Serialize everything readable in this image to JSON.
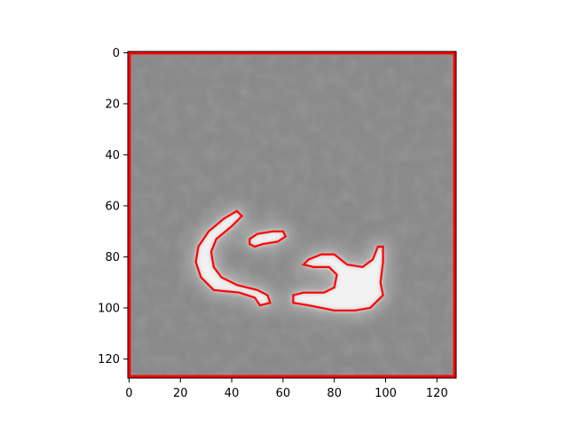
{
  "image": {
    "kind": "grayscale microscopy-style image with red contour overlay",
    "rows": 128,
    "cols": 128,
    "background_gray": "#8a8a8a",
    "contour_color": "#ff0000",
    "object_color": "#f2f2f2"
  },
  "axes": {
    "x_ticks": [
      {
        "value": 0,
        "label": "0"
      },
      {
        "value": 20,
        "label": "20"
      },
      {
        "value": 40,
        "label": "40"
      },
      {
        "value": 60,
        "label": "60"
      },
      {
        "value": 80,
        "label": "80"
      },
      {
        "value": 100,
        "label": "100"
      },
      {
        "value": 120,
        "label": "120"
      }
    ],
    "y_ticks": [
      {
        "value": 0,
        "label": "0"
      },
      {
        "value": 20,
        "label": "20"
      },
      {
        "value": 40,
        "label": "40"
      },
      {
        "value": 60,
        "label": "60"
      },
      {
        "value": 80,
        "label": "80"
      },
      {
        "value": 100,
        "label": "100"
      },
      {
        "value": 120,
        "label": "120"
      }
    ]
  },
  "contours": [
    {
      "name": "frame",
      "points": [
        [
          0,
          0
        ],
        [
          127,
          0
        ],
        [
          127,
          127
        ],
        [
          0,
          127
        ]
      ]
    },
    {
      "name": "left-arc",
      "points": [
        [
          42,
          62
        ],
        [
          44,
          64
        ],
        [
          40,
          68
        ],
        [
          34,
          73
        ],
        [
          32,
          78
        ],
        [
          33,
          84
        ],
        [
          36,
          88
        ],
        [
          42,
          91
        ],
        [
          50,
          93
        ],
        [
          54,
          95
        ],
        [
          55,
          98
        ],
        [
          51,
          99
        ],
        [
          49,
          96
        ],
        [
          43,
          94
        ],
        [
          33,
          93
        ],
        [
          28,
          88
        ],
        [
          26,
          82
        ],
        [
          27,
          76
        ],
        [
          31,
          70
        ],
        [
          37,
          65
        ]
      ]
    },
    {
      "name": "small-blob",
      "points": [
        [
          47,
          73
        ],
        [
          50,
          71
        ],
        [
          56,
          70
        ],
        [
          60,
          70
        ],
        [
          61,
          72
        ],
        [
          58,
          74
        ],
        [
          52,
          75
        ],
        [
          49,
          76
        ],
        [
          47,
          75
        ]
      ]
    },
    {
      "name": "right-hook",
      "points": [
        [
          64,
          95
        ],
        [
          68,
          94
        ],
        [
          76,
          94
        ],
        [
          80,
          92
        ],
        [
          81,
          87
        ],
        [
          78,
          84
        ],
        [
          72,
          84
        ],
        [
          68,
          83
        ],
        [
          70,
          81
        ],
        [
          75,
          79
        ],
        [
          80,
          79
        ],
        [
          85,
          83
        ],
        [
          91,
          84
        ],
        [
          95,
          81
        ],
        [
          97,
          76
        ],
        [
          99,
          76
        ],
        [
          99,
          82
        ],
        [
          98,
          90
        ],
        [
          99,
          95
        ],
        [
          96,
          98
        ],
        [
          94,
          100
        ],
        [
          88,
          101
        ],
        [
          80,
          101
        ],
        [
          70,
          99
        ],
        [
          64,
          98
        ]
      ]
    }
  ]
}
